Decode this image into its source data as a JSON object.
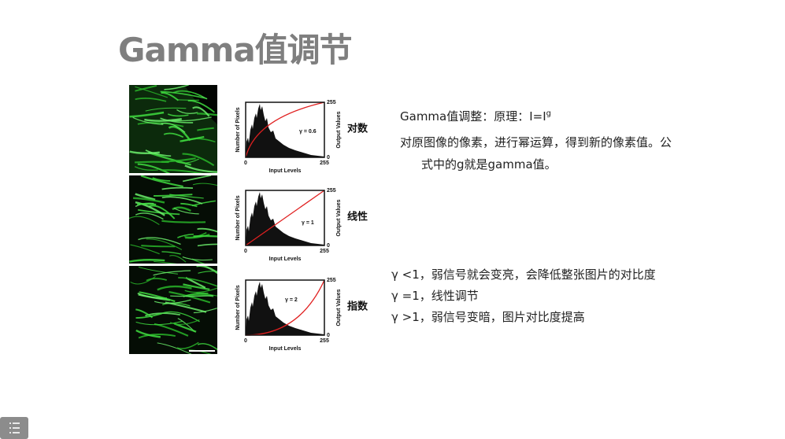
{
  "title": "Gamma值调节",
  "panels": [
    {
      "label": "对数",
      "gamma": "γ = 0.6",
      "x_axis": "Input Levels",
      "y_axis": "Number of Pixels",
      "y2_axis": "Output Values",
      "x_ticks": [
        "0",
        "255"
      ],
      "y2_ticks": [
        "0",
        "255"
      ]
    },
    {
      "label": "线性",
      "gamma": "γ = 1",
      "x_axis": "Input Levels",
      "y_axis": "Number of Pixels",
      "y2_axis": "Output Values",
      "x_ticks": [
        "0",
        "255"
      ],
      "y2_ticks": [
        "0",
        "255"
      ]
    },
    {
      "label": "指数",
      "gamma": "γ = 2",
      "x_axis": "Input Levels",
      "y_axis": "Number of Pixels",
      "y2_axis": "Output Values",
      "x_ticks": [
        "0",
        "255"
      ],
      "y2_ticks": [
        "0",
        "255"
      ]
    }
  ],
  "description": {
    "formula": "Gamma值调整：原理：I=I",
    "formula_sup": "g",
    "body": "对原图像的像素，进行幂运算，得到新的像素值。公",
    "body_cont": "式中的g就是gamma值。"
  },
  "rules": [
    "γ <1，弱信号就会变亮，会降低整张图片的对比度",
    "γ =1，线性调节",
    "γ >1，弱信号变暗，图片对比度提高"
  ]
}
